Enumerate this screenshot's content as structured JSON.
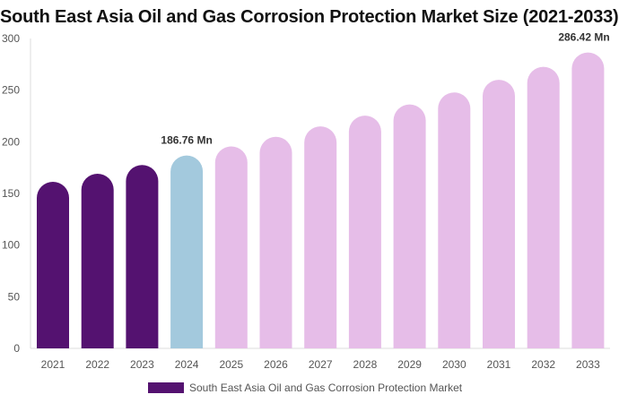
{
  "chart_data": {
    "type": "bar",
    "title": "South East Asia Oil and Gas Corrosion Protection Market Size (2021-2033)",
    "categories": [
      "2021",
      "2022",
      "2023",
      "2024",
      "2025",
      "2026",
      "2027",
      "2028",
      "2029",
      "2030",
      "2031",
      "2032",
      "2033"
    ],
    "series": [
      {
        "name": "South East Asia Oil and Gas Corrosion Protection Market",
        "values": [
          161.3,
          169.1,
          177.5,
          186.76,
          195.5,
          204.8,
          214.9,
          225.3,
          236.2,
          247.8,
          260.0,
          272.6,
          286.42
        ]
      }
    ],
    "data_labels": {
      "3": "186.76 Mn",
      "12": "286.42 Mn"
    },
    "ylim": [
      0,
      300
    ],
    "yticks": [
      0,
      50,
      100,
      150,
      200,
      250,
      300
    ],
    "grid": false,
    "legend": "bottom",
    "colors": {
      "historical": "#541270",
      "base_year": "#a3c9dd",
      "forecast": "#e6bde8"
    }
  }
}
